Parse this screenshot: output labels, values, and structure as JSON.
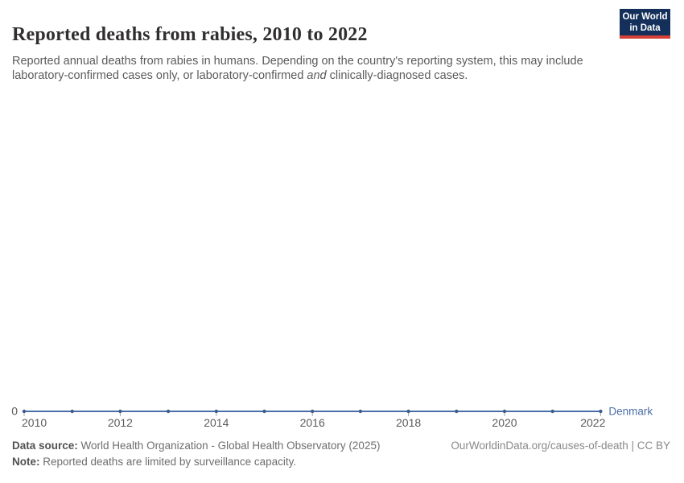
{
  "header": {
    "title": "Reported deaths from rabies, 2010 to 2022",
    "subtitle_part1": "Reported annual deaths from rabies in humans. Depending on the country's reporting system, this may include laboratory-confirmed cases only, or laboratory-confirmed ",
    "subtitle_italic": "and",
    "subtitle_part2": " clinically-diagnosed cases."
  },
  "logo": {
    "line1": "Our World",
    "line2": "in Data",
    "bg_color": "#14305a",
    "accent_color": "#d43f38"
  },
  "chart_data": {
    "type": "line",
    "title": "Reported deaths from rabies, 2010 to 2022",
    "x": [
      2010,
      2011,
      2012,
      2013,
      2014,
      2015,
      2016,
      2017,
      2018,
      2019,
      2020,
      2021,
      2022
    ],
    "series": [
      {
        "name": "Denmark",
        "color": "#4C6EA8",
        "point_color": "#3B5B94",
        "values": [
          0,
          0,
          0,
          0,
          0,
          0,
          0,
          0,
          0,
          0,
          0,
          0,
          0
        ]
      }
    ],
    "x_ticks": [
      2010,
      2012,
      2014,
      2016,
      2018,
      2020,
      2022
    ],
    "x_tick_labels": [
      "2010",
      "2012",
      "2014",
      "2016",
      "2018",
      "2020",
      "2022"
    ],
    "y_ticks": [
      0
    ],
    "y_tick_labels": [
      "0"
    ],
    "xlim": [
      2010,
      2022
    ],
    "ylim": [
      0,
      1
    ],
    "grid": false,
    "legend_position": "end-of-line",
    "axis_label_color": "#5b5b5b",
    "tick_color": "#a7a7a7"
  },
  "footer": {
    "data_source_label": "Data source:",
    "data_source_text": " World Health Organization - Global Health Observatory (2025)",
    "note_label": "Note:",
    "note_text": " Reported deaths are limited by surveillance capacity.",
    "rights": "OurWorldinData.org/causes-of-death | CC BY"
  }
}
